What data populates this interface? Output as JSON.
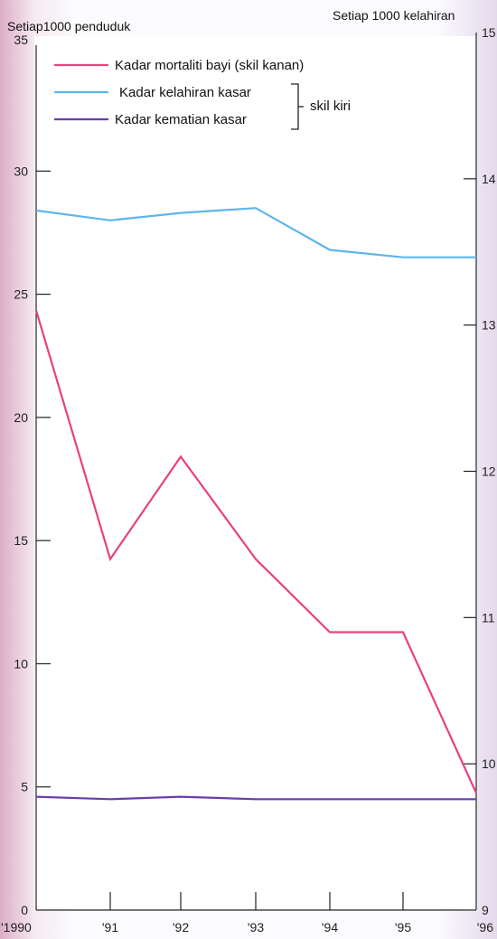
{
  "chart_data": {
    "type": "line",
    "left_axis_title": "Setiap1000 penduduk",
    "right_axis_title": "Setiap 1000 kelahiran",
    "x_labels": [
      "'1990",
      "'91",
      "'92",
      "'93",
      "'94",
      "'95",
      "'96"
    ],
    "left_ylim": [
      0,
      35
    ],
    "right_ylim": [
      9,
      15
    ],
    "left_ticks": [
      "0",
      "5",
      "10",
      "15",
      "20",
      "25",
      "30",
      "35"
    ],
    "right_ticks": [
      "9",
      "10",
      "11",
      "12",
      "13",
      "14",
      "15"
    ],
    "series": [
      {
        "name": "Kadar mortaliti bayi  (skil kanan)",
        "axis": "right",
        "color": "#e8417f",
        "values": [
          13.1,
          11.4,
          12.1,
          11.4,
          10.9,
          10.9,
          9.8
        ]
      },
      {
        "name": "Kadar kelahiran kasar",
        "axis": "left",
        "color": "#5db6ee",
        "values": [
          28.4,
          28.0,
          28.3,
          28.5,
          26.8,
          26.5,
          26.5
        ]
      },
      {
        "name": "Kadar kematian kasar",
        "axis": "left",
        "color": "#6a3fa8",
        "values": [
          4.6,
          4.5,
          4.6,
          4.5,
          4.5,
          4.5,
          4.5
        ]
      }
    ],
    "bracket_label": "skil kiri",
    "grid": false,
    "legend_position": "top-left"
  }
}
